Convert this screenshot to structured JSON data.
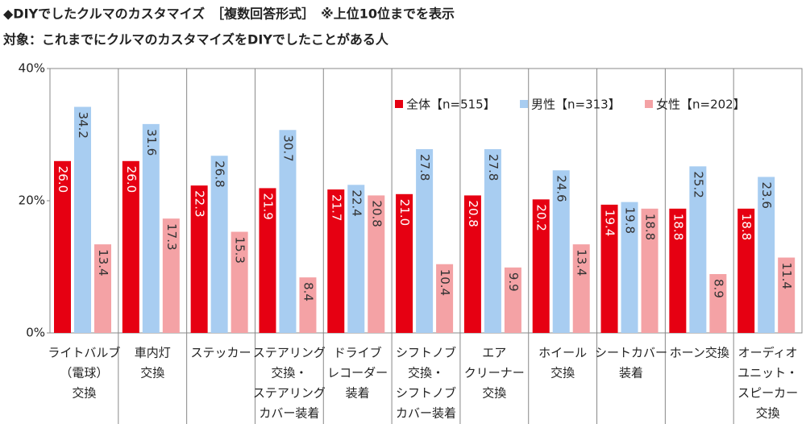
{
  "chart_data": {
    "type": "bar",
    "title": "◆DIYでしたクルマのカスタマイズ　［複数回答形式］　※上位10位までを表示",
    "subtitle": "対象：これまでにクルマのカスタマイズをDIYでしたことがある人",
    "categories": [
      [
        "ライトバルブ",
        "（電球）",
        "交換"
      ],
      [
        "車内灯",
        "交換"
      ],
      [
        "ステッカー"
      ],
      [
        "ステアリング",
        "交換・",
        "ステアリング",
        "カバー装着"
      ],
      [
        "ドライブ",
        "レコーダー",
        "装着"
      ],
      [
        "シフトノブ",
        "交換・",
        "シフトノブ",
        "カバー装着"
      ],
      [
        "エア",
        "クリーナー",
        "交換"
      ],
      [
        "ホイール",
        "交換"
      ],
      [
        "シートカバー",
        "装着"
      ],
      [
        "ホーン交換"
      ],
      [
        "オーディオ",
        "ユニット・",
        "スピーカー",
        "交換"
      ]
    ],
    "series": [
      {
        "name": "全体【n=515】",
        "color": "#e60012",
        "values": [
          26.0,
          26.0,
          22.3,
          21.9,
          21.7,
          21.0,
          20.8,
          20.2,
          19.4,
          18.8,
          18.8
        ],
        "value_labels": [
          "26.0",
          "26.0",
          "22.3",
          "21.9",
          "21.7",
          "21.0",
          "20.8",
          "20.2",
          "19.4",
          "18.8",
          "18.8"
        ]
      },
      {
        "name": "男性【n=313】",
        "color": "#a8cdf1",
        "values": [
          34.2,
          31.6,
          26.8,
          30.7,
          22.4,
          27.8,
          27.8,
          24.6,
          19.8,
          25.2,
          23.6
        ],
        "value_labels": [
          "34.2",
          "31.6",
          "26.8",
          "30.7",
          "22.4",
          "27.8",
          "27.8",
          "24.6",
          "19.8",
          "25.2",
          "23.6"
        ]
      },
      {
        "name": "女性【n=202】",
        "color": "#f4a2a5",
        "values": [
          13.4,
          17.3,
          15.3,
          8.4,
          20.8,
          10.4,
          9.9,
          13.4,
          18.8,
          8.9,
          11.4
        ],
        "value_labels": [
          "13.4",
          "17.3",
          "15.3",
          "8.4",
          "20.8",
          "10.4",
          "9.9",
          "13.4",
          "18.8",
          "8.9",
          "11.4"
        ]
      }
    ],
    "ylim": [
      0,
      40
    ],
    "yticks": [
      {
        "value": 0,
        "label": "0%"
      },
      {
        "value": 20,
        "label": "20%"
      },
      {
        "value": 40,
        "label": "40%"
      }
    ]
  }
}
